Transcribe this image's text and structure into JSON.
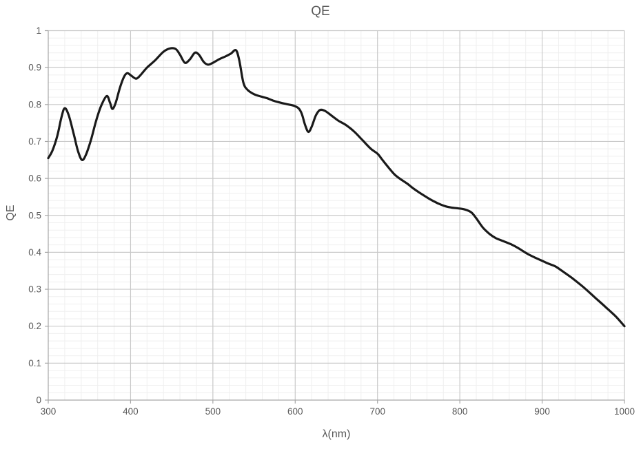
{
  "chart": {
    "title": "QE",
    "x_axis_label": "λ(nm)",
    "y_axis_label": "QE"
  },
  "colors": {
    "curve": "#1a1a1a",
    "text": "#595959",
    "axis_line": "#a6a6a6",
    "grid_major": "#c9c9c9",
    "grid_minor": "#efefef",
    "background": "#ffffff"
  },
  "chart_data": {
    "type": "line",
    "title": "QE",
    "xlabel": "λ(nm)",
    "ylabel": "QE",
    "xlim": [
      300,
      1000
    ],
    "ylim": [
      0,
      1
    ],
    "x_major_ticks": [
      300,
      400,
      500,
      600,
      700,
      800,
      900,
      1000
    ],
    "y_major_ticks": [
      0,
      0.1,
      0.2,
      0.3,
      0.4,
      0.5,
      0.6,
      0.7,
      0.8,
      0.9,
      1
    ],
    "x_minor_step": 20,
    "y_minor_step": 0.02,
    "grid": "major+minor",
    "legend_position": "none",
    "series": [
      {
        "name": "QE",
        "points": [
          [
            300,
            0.655
          ],
          [
            305,
            0.675
          ],
          [
            311,
            0.715
          ],
          [
            316,
            0.765
          ],
          [
            320,
            0.79
          ],
          [
            325,
            0.77
          ],
          [
            331,
            0.72
          ],
          [
            336,
            0.675
          ],
          [
            341,
            0.65
          ],
          [
            346,
            0.665
          ],
          [
            352,
            0.705
          ],
          [
            358,
            0.755
          ],
          [
            364,
            0.795
          ],
          [
            371,
            0.823
          ],
          [
            375,
            0.805
          ],
          [
            378,
            0.788
          ],
          [
            382,
            0.805
          ],
          [
            387,
            0.845
          ],
          [
            392,
            0.875
          ],
          [
            396,
            0.885
          ],
          [
            401,
            0.878
          ],
          [
            407,
            0.87
          ],
          [
            413,
            0.882
          ],
          [
            420,
            0.9
          ],
          [
            430,
            0.92
          ],
          [
            440,
            0.943
          ],
          [
            448,
            0.952
          ],
          [
            455,
            0.95
          ],
          [
            460,
            0.935
          ],
          [
            466,
            0.913
          ],
          [
            472,
            0.922
          ],
          [
            478,
            0.94
          ],
          [
            483,
            0.935
          ],
          [
            489,
            0.915
          ],
          [
            494,
            0.908
          ],
          [
            500,
            0.913
          ],
          [
            508,
            0.923
          ],
          [
            516,
            0.931
          ],
          [
            522,
            0.938
          ],
          [
            528,
            0.947
          ],
          [
            532,
            0.92
          ],
          [
            537,
            0.86
          ],
          [
            542,
            0.84
          ],
          [
            550,
            0.828
          ],
          [
            558,
            0.822
          ],
          [
            566,
            0.817
          ],
          [
            574,
            0.81
          ],
          [
            582,
            0.805
          ],
          [
            590,
            0.801
          ],
          [
            598,
            0.797
          ],
          [
            604,
            0.79
          ],
          [
            608,
            0.775
          ],
          [
            612,
            0.745
          ],
          [
            616,
            0.726
          ],
          [
            620,
            0.74
          ],
          [
            625,
            0.77
          ],
          [
            630,
            0.785
          ],
          [
            636,
            0.783
          ],
          [
            643,
            0.772
          ],
          [
            652,
            0.757
          ],
          [
            662,
            0.744
          ],
          [
            672,
            0.726
          ],
          [
            682,
            0.703
          ],
          [
            692,
            0.68
          ],
          [
            700,
            0.667
          ],
          [
            706,
            0.65
          ],
          [
            714,
            0.628
          ],
          [
            721,
            0.61
          ],
          [
            728,
            0.598
          ],
          [
            736,
            0.586
          ],
          [
            744,
            0.572
          ],
          [
            752,
            0.56
          ],
          [
            762,
            0.546
          ],
          [
            772,
            0.534
          ],
          [
            782,
            0.525
          ],
          [
            790,
            0.521
          ],
          [
            798,
            0.519
          ],
          [
            806,
            0.516
          ],
          [
            814,
            0.508
          ],
          [
            820,
            0.492
          ],
          [
            828,
            0.467
          ],
          [
            836,
            0.45
          ],
          [
            844,
            0.438
          ],
          [
            852,
            0.431
          ],
          [
            862,
            0.422
          ],
          [
            872,
            0.41
          ],
          [
            882,
            0.396
          ],
          [
            892,
            0.385
          ],
          [
            900,
            0.377
          ],
          [
            908,
            0.369
          ],
          [
            916,
            0.362
          ],
          [
            924,
            0.35
          ],
          [
            936,
            0.331
          ],
          [
            950,
            0.306
          ],
          [
            964,
            0.278
          ],
          [
            978,
            0.25
          ],
          [
            990,
            0.225
          ],
          [
            1000,
            0.2
          ]
        ]
      }
    ]
  }
}
